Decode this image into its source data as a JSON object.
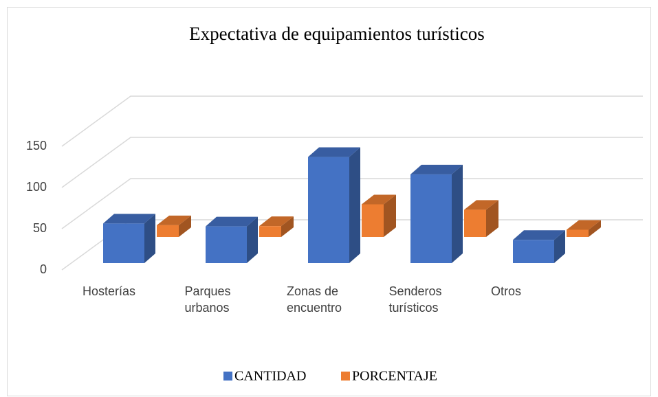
{
  "chart_data": {
    "type": "bar3d",
    "title": "Expectativa de equipamientos turísticos",
    "categories": [
      "Hosterías",
      "Parques\nurbanos",
      "Zonas de\nencuentro",
      "Senderos\nturísticos",
      "Otros"
    ],
    "series": [
      {
        "name": "CANTIDAD",
        "color": "#4472c4",
        "values": [
          41,
          38,
          110,
          92,
          24
        ]
      },
      {
        "name": "PORCENTAJE",
        "color": "#ed7d31",
        "values": [
          13,
          12,
          36,
          30,
          8
        ]
      }
    ],
    "ylim": [
      0,
      150
    ],
    "yticks": [
      0,
      50,
      100,
      150
    ],
    "grid": true,
    "legend": "bottom"
  }
}
